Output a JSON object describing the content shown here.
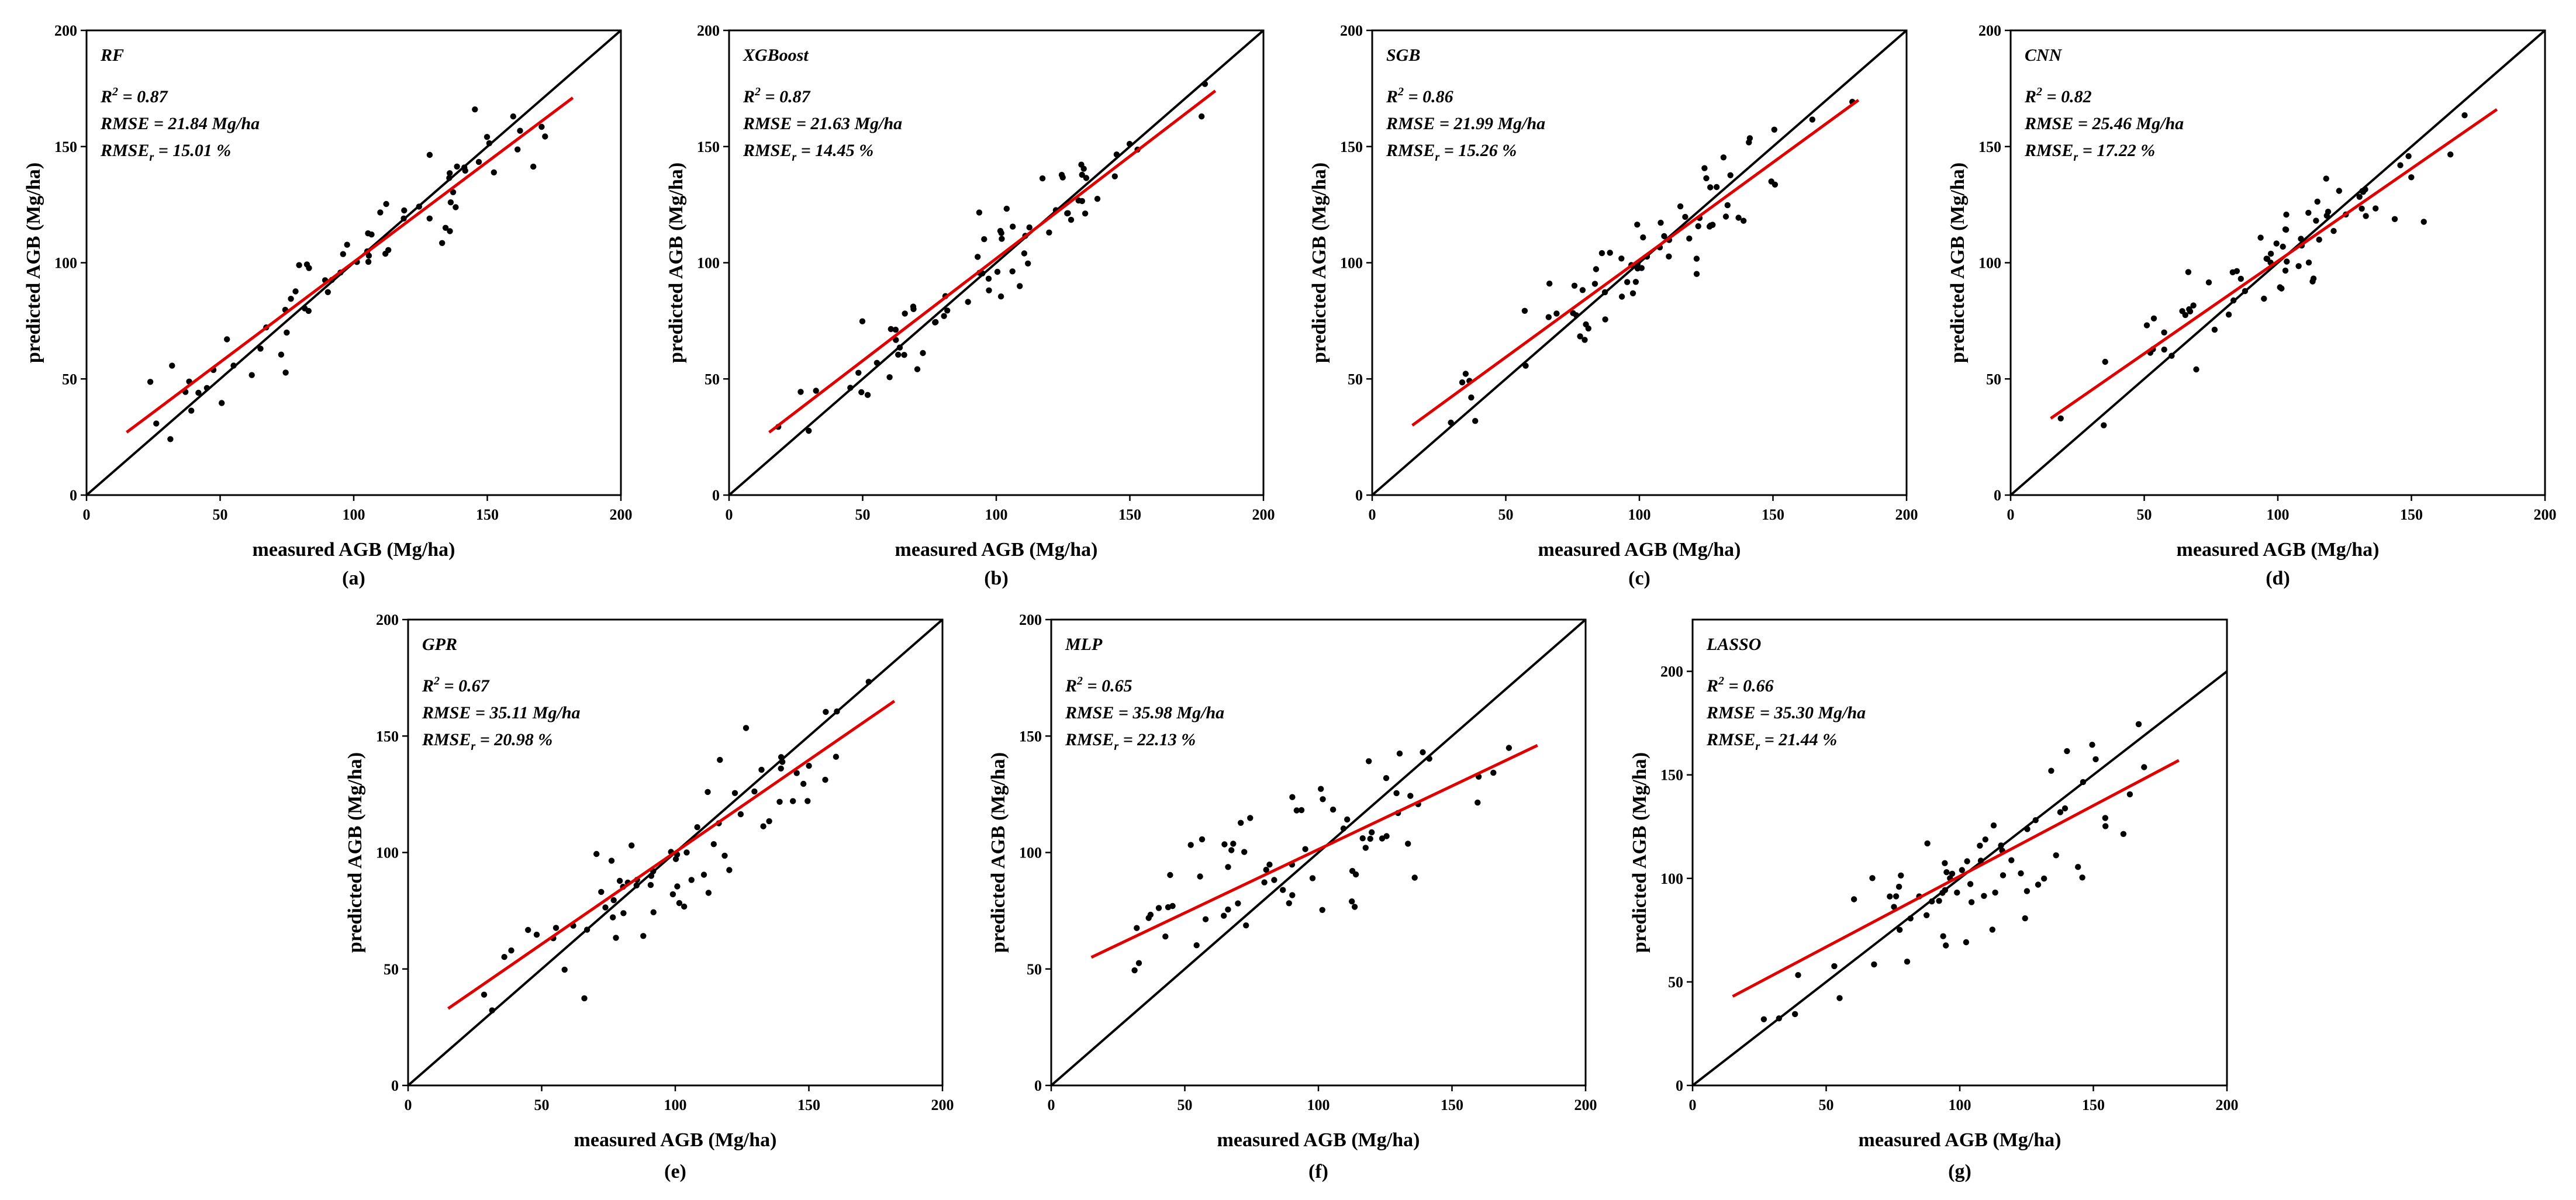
{
  "figure": {
    "xlabel": "measured AGB (Mg/ha)",
    "ylabel": "predicted AGB (Mg/ha)",
    "tick_labels": [
      "0",
      "50",
      "100",
      "150",
      "200"
    ]
  },
  "chart_data": [
    {
      "type": "scatter",
      "caption": "(a)",
      "model": "RF",
      "r2_text": "R² = 0.87",
      "rmse_text": "RMSE = 21.84 Mg/ha",
      "rmser_text": "RMSEr = 15.01 %",
      "xlabel": "measured AGB (Mg/ha)",
      "ylabel": "predicted AGB (Mg/ha)",
      "xlim": [
        0,
        200
      ],
      "ylim": [
        0,
        200
      ],
      "xticks": [
        0,
        50,
        100,
        150,
        200
      ],
      "yticks": [
        0,
        50,
        100,
        150,
        200
      ],
      "identity_line": [
        [
          0,
          0
        ],
        [
          200,
          200
        ]
      ],
      "regression_line": [
        [
          15,
          27
        ],
        [
          182,
          171
        ]
      ],
      "scatter_color": "#000000",
      "regression_color": "#e00000",
      "identity_color": "#000000"
    },
    {
      "type": "scatter",
      "caption": "(b)",
      "model": "XGBoost",
      "r2_text": "R² = 0.87",
      "rmse_text": "RMSE = 21.63 Mg/ha",
      "rmser_text": "RMSEr = 14.45 %",
      "xlabel": "measured AGB (Mg/ha)",
      "ylabel": "predicted AGB (Mg/ha)",
      "xlim": [
        0,
        200
      ],
      "ylim": [
        0,
        200
      ],
      "xticks": [
        0,
        50,
        100,
        150,
        200
      ],
      "yticks": [
        0,
        50,
        100,
        150,
        200
      ],
      "identity_line": [
        [
          0,
          0
        ],
        [
          200,
          200
        ]
      ],
      "regression_line": [
        [
          15,
          27
        ],
        [
          182,
          174
        ]
      ],
      "scatter_color": "#000000",
      "regression_color": "#e00000",
      "identity_color": "#000000"
    },
    {
      "type": "scatter",
      "caption": "(c)",
      "model": "SGB",
      "r2_text": "R² = 0.86",
      "rmse_text": "RMSE = 21.99 Mg/ha",
      "rmser_text": "RMSEr = 15.26 %",
      "xlabel": "measured AGB (Mg/ha)",
      "ylabel": "predicted AGB (Mg/ha)",
      "xlim": [
        0,
        200
      ],
      "ylim": [
        0,
        200
      ],
      "xticks": [
        0,
        50,
        100,
        150,
        200
      ],
      "yticks": [
        0,
        50,
        100,
        150,
        200
      ],
      "identity_line": [
        [
          0,
          0
        ],
        [
          200,
          200
        ]
      ],
      "regression_line": [
        [
          15,
          30
        ],
        [
          182,
          170
        ]
      ],
      "scatter_color": "#000000",
      "regression_color": "#e00000",
      "identity_color": "#000000"
    },
    {
      "type": "scatter",
      "caption": "(d)",
      "model": "CNN",
      "r2_text": "R² = 0.82",
      "rmse_text": "RMSE = 25.46 Mg/ha",
      "rmser_text": "RMSEr = 17.22 %",
      "xlabel": "measured AGB (Mg/ha)",
      "ylabel": "predicted AGB (Mg/ha)",
      "xlim": [
        0,
        200
      ],
      "ylim": [
        0,
        200
      ],
      "xticks": [
        0,
        50,
        100,
        150,
        200
      ],
      "yticks": [
        0,
        50,
        100,
        150,
        200
      ],
      "identity_line": [
        [
          0,
          0
        ],
        [
          200,
          200
        ]
      ],
      "regression_line": [
        [
          15,
          33
        ],
        [
          182,
          166
        ]
      ],
      "scatter_color": "#000000",
      "regression_color": "#e00000",
      "identity_color": "#000000"
    },
    {
      "type": "scatter",
      "caption": "(e)",
      "model": "GPR",
      "r2_text": "R² = 0.67",
      "rmse_text": "RMSE = 35.11 Mg/ha",
      "rmser_text": "RMSEr = 20.98 %",
      "xlabel": "measured AGB (Mg/ha)",
      "ylabel": "predicted AGB (Mg/ha)",
      "xlim": [
        0,
        200
      ],
      "ylim": [
        0,
        200
      ],
      "xticks": [
        0,
        50,
        100,
        150,
        200
      ],
      "yticks": [
        0,
        50,
        100,
        150,
        200
      ],
      "identity_line": [
        [
          0,
          0
        ],
        [
          200,
          200
        ]
      ],
      "regression_line": [
        [
          15,
          33
        ],
        [
          182,
          165
        ]
      ],
      "scatter_color": "#000000",
      "regression_color": "#e00000",
      "identity_color": "#000000"
    },
    {
      "type": "scatter",
      "caption": "(f)",
      "model": "MLP",
      "r2_text": "R² = 0.65",
      "rmse_text": "RMSE = 35.98 Mg/ha",
      "rmser_text": "RMSEr = 22.13 %",
      "xlabel": "measured AGB (Mg/ha)",
      "ylabel": "predicted AGB (Mg/ha)",
      "xlim": [
        0,
        200
      ],
      "ylim": [
        0,
        200
      ],
      "xticks": [
        0,
        50,
        100,
        150,
        200
      ],
      "yticks": [
        0,
        50,
        100,
        150,
        200
      ],
      "identity_line": [
        [
          0,
          0
        ],
        [
          200,
          200
        ]
      ],
      "regression_line": [
        [
          15,
          55
        ],
        [
          182,
          146
        ]
      ],
      "scatter_color": "#000000",
      "regression_color": "#e00000",
      "identity_color": "#000000"
    },
    {
      "type": "scatter",
      "caption": "(g)",
      "model": "LASSO",
      "r2_text": "R² = 0.66",
      "rmse_text": "RMSE = 35.30 Mg/ha",
      "rmser_text": "RMSEr = 21.44 %",
      "xlabel": "measured AGB (Mg/ha)",
      "ylabel": "predicted AGB (Mg/ha)",
      "xlim": [
        0,
        200
      ],
      "ylim": [
        0,
        225
      ],
      "xticks": [
        0,
        50,
        100,
        150,
        200
      ],
      "yticks": [
        0,
        50,
        100,
        150,
        200
      ],
      "identity_line": [
        [
          0,
          0
        ],
        [
          200,
          200
        ]
      ],
      "regression_line": [
        [
          15,
          43
        ],
        [
          182,
          157
        ]
      ],
      "scatter_color": "#000000",
      "regression_color": "#e00000",
      "identity_color": "#000000"
    }
  ]
}
